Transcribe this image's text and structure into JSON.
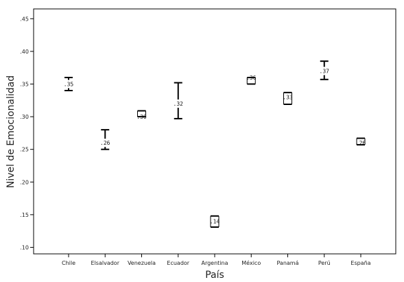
{
  "chart_data": {
    "type": "errorbar",
    "xlabel": "País",
    "ylabel": "Nivel de Emocionalidad",
    "ylim": [
      0.09,
      0.465
    ],
    "y_ticks": [
      ".10",
      ".15",
      ".20",
      ".25",
      ".30",
      ".35",
      ".40",
      ".45"
    ],
    "y_tick_values": [
      0.1,
      0.15,
      0.2,
      0.25,
      0.3,
      0.35,
      0.4,
      0.45
    ],
    "grid": false,
    "categories": [
      "Chile",
      "Elsalvador",
      "Venezuela",
      "Ecuador",
      "Argentina",
      "México",
      "Panamá",
      "Perú",
      "España"
    ],
    "series": [
      {
        "means": [
          0.35,
          0.26,
          0.3,
          0.32,
          0.14,
          0.36,
          0.33,
          0.37,
          0.26
        ],
        "mean_labels": [
          ".35",
          ".26",
          ".30",
          ".32",
          ".14",
          ".36",
          ".33",
          ".37",
          ".26"
        ],
        "lower": [
          0.34,
          0.25,
          0.3,
          0.297,
          0.131,
          0.35,
          0.319,
          0.357,
          0.257
        ],
        "upper": [
          0.36,
          0.28,
          0.309,
          0.352,
          0.148,
          0.36,
          0.337,
          0.385,
          0.267
        ]
      }
    ],
    "colors": {
      "line": "#000000",
      "frame": "#000000"
    }
  }
}
